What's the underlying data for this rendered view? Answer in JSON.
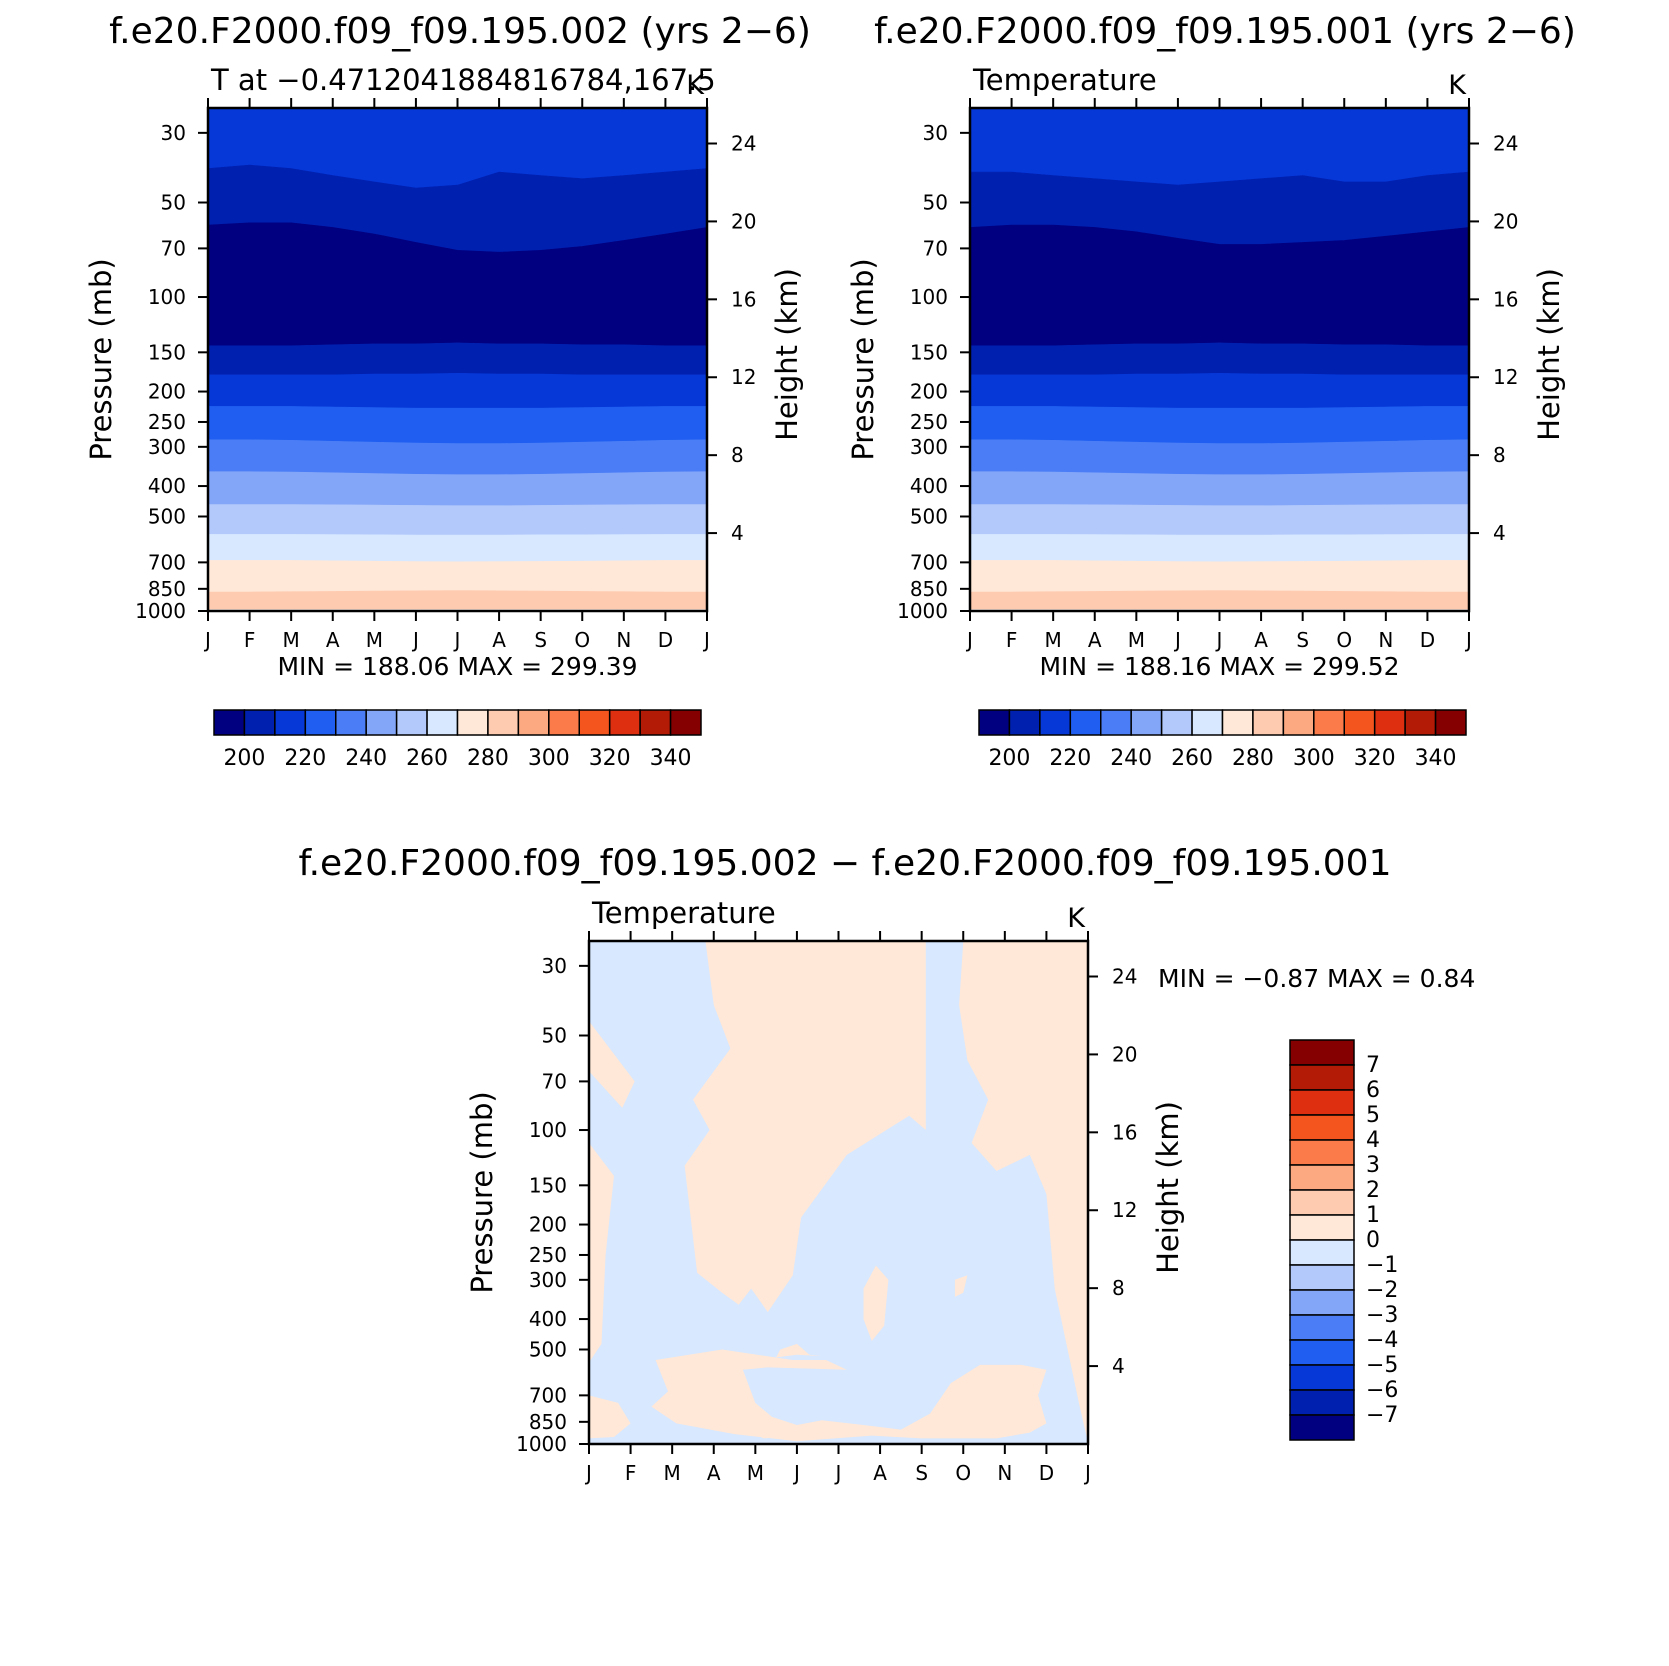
{
  "figure": {
    "panel_titles": [
      "f.e20.F2000.f09_f09.195.002 (yrs 2−6)",
      "f.e20.F2000.f09_f09.195.001 (yrs 2−6)"
    ],
    "diff_title": "f.e20.F2000.f09_f09.195.002 − f.e20.F2000.f09_f09.195.001"
  },
  "chart_data": [
    {
      "type": "heatmap",
      "title": "f.e20.F2000.f09_f09.195.002 (yrs 2−6)",
      "subtitle_left": "T at −0.4712041884816784,167.5",
      "subtitle_right": "K",
      "ylabel": "Pressure (mb)",
      "ylabel_right": "Height (km)",
      "months": [
        "J",
        "F",
        "M",
        "A",
        "M",
        "J",
        "J",
        "A",
        "S",
        "O",
        "N",
        "D",
        "J"
      ],
      "pressure_ticks": [
        30,
        50,
        70,
        100,
        150,
        200,
        250,
        300,
        400,
        500,
        700,
        850,
        1000
      ],
      "height_ticks": [
        4,
        8,
        12,
        16,
        20,
        24
      ],
      "yaxis": "log-pressure",
      "ylim_mb": [
        25,
        1000
      ],
      "min_label": "MIN = 188.06  MAX = 299.39",
      "contour_interval": 10,
      "boundaries_mb": {
        "200_210": [
          39,
          38,
          39,
          41,
          43,
          45,
          44,
          40,
          41,
          42,
          41,
          40,
          39
        ],
        "190_200": [
          59,
          58,
          58,
          60,
          63,
          67,
          71,
          72,
          71,
          69,
          66,
          63,
          60
        ],
        "200_210_low": [
          143,
          143,
          143,
          142,
          141,
          141,
          140,
          141,
          141,
          142,
          142,
          143,
          143
        ],
        "210_220": [
          177,
          177,
          177,
          177,
          176,
          176,
          175,
          176,
          176,
          177,
          177,
          177,
          177
        ],
        "220_230": [
          223,
          223,
          223,
          224,
          225,
          226,
          226,
          226,
          226,
          225,
          224,
          223,
          223
        ],
        "230_240": [
          285,
          285,
          286,
          288,
          290,
          292,
          293,
          293,
          292,
          290,
          288,
          286,
          285
        ],
        "240_250": [
          360,
          360,
          361,
          363,
          365,
          367,
          368,
          368,
          367,
          365,
          363,
          361,
          360
        ],
        "250_260": [
          458,
          458,
          458,
          459,
          460,
          461,
          462,
          462,
          461,
          460,
          459,
          458,
          458
        ],
        "260_270": [
          570,
          570,
          570,
          571,
          572,
          573,
          573,
          573,
          572,
          572,
          571,
          570,
          570
        ],
        "270_280": [
          690,
          690,
          690,
          692,
          694,
          696,
          697,
          696,
          695,
          694,
          692,
          690,
          690
        ],
        "280_290": [
          870,
          870,
          868,
          866,
          864,
          862,
          861,
          862,
          864,
          866,
          868,
          870,
          870
        ],
        "290_300": [
          995,
          995,
          995,
          995,
          995,
          995,
          995,
          995,
          995,
          995,
          995,
          995,
          995
        ]
      }
    },
    {
      "type": "heatmap",
      "title": "f.e20.F2000.f09_f09.195.001 (yrs 2−6)",
      "subtitle_left": "Temperature",
      "subtitle_right": "K",
      "ylabel": "Pressure (mb)",
      "ylabel_right": "Height (km)",
      "months": [
        "J",
        "F",
        "M",
        "A",
        "M",
        "J",
        "J",
        "A",
        "S",
        "O",
        "N",
        "D",
        "J"
      ],
      "pressure_ticks": [
        30,
        50,
        70,
        100,
        150,
        200,
        250,
        300,
        400,
        500,
        700,
        850,
        1000
      ],
      "height_ticks": [
        4,
        8,
        12,
        16,
        20,
        24
      ],
      "yaxis": "log-pressure",
      "ylim_mb": [
        25,
        1000
      ],
      "min_label": "MIN = 188.16  MAX = 299.52",
      "contour_interval": 10,
      "boundaries_mb": {
        "200_210": [
          40,
          40,
          41,
          42,
          43,
          44,
          43,
          42,
          41,
          43,
          43,
          41,
          40
        ],
        "190_200": [
          60,
          59,
          59,
          60,
          62,
          65,
          68,
          68,
          67,
          66,
          64,
          62,
          60
        ],
        "200_210_low": [
          143,
          143,
          143,
          142,
          141,
          141,
          140,
          141,
          141,
          142,
          142,
          143,
          143
        ],
        "210_220": [
          177,
          177,
          177,
          177,
          176,
          176,
          175,
          176,
          176,
          177,
          177,
          177,
          177
        ],
        "220_230": [
          223,
          223,
          223,
          224,
          225,
          226,
          226,
          226,
          226,
          225,
          224,
          223,
          223
        ],
        "230_240": [
          285,
          285,
          286,
          288,
          290,
          292,
          293,
          293,
          292,
          290,
          288,
          286,
          285
        ],
        "240_250": [
          360,
          360,
          361,
          363,
          365,
          367,
          368,
          368,
          367,
          365,
          363,
          361,
          360
        ],
        "250_260": [
          458,
          458,
          458,
          459,
          460,
          461,
          462,
          462,
          461,
          460,
          459,
          458,
          458
        ],
        "260_270": [
          570,
          570,
          570,
          571,
          572,
          573,
          573,
          573,
          572,
          572,
          571,
          570,
          570
        ],
        "270_280": [
          690,
          690,
          690,
          692,
          694,
          696,
          697,
          696,
          695,
          694,
          692,
          690,
          690
        ],
        "280_290": [
          870,
          870,
          868,
          866,
          864,
          862,
          861,
          862,
          864,
          866,
          868,
          870,
          870
        ],
        "290_300": [
          995,
          995,
          995,
          995,
          995,
          995,
          995,
          995,
          995,
          995,
          995,
          995,
          995
        ]
      }
    },
    {
      "type": "heatmap",
      "title": "f.e20.F2000.f09_f09.195.002 − f.e20.F2000.f09_f09.195.001",
      "subtitle_left": "Temperature",
      "subtitle_right": "K",
      "ylabel": "Pressure (mb)",
      "ylabel_right": "Height (km)",
      "months": [
        "J",
        "F",
        "M",
        "A",
        "M",
        "J",
        "J",
        "A",
        "S",
        "O",
        "N",
        "D",
        "J"
      ],
      "pressure_ticks": [
        30,
        50,
        70,
        100,
        150,
        200,
        250,
        300,
        400,
        500,
        700,
        850,
        1000
      ],
      "height_ticks": [
        4,
        8,
        12,
        16,
        20,
        24
      ],
      "yaxis": "log-pressure",
      "ylim_mb": [
        25,
        1000
      ],
      "min_label": "MIN =  −0.87 MAX =    0.84",
      "contour_interval": 1,
      "background_range": "-1 to 0",
      "positive_regions_month_mb": [
        [
          [
            2.8,
            25
          ],
          [
            8.1,
            25
          ],
          [
            8.1,
            100
          ],
          [
            7.7,
            90
          ],
          [
            6.2,
            120
          ],
          [
            5.1,
            190
          ],
          [
            4.9,
            290
          ],
          [
            4.3,
            380
          ],
          [
            3.9,
            320
          ],
          [
            3.6,
            360
          ],
          [
            3.2,
            330
          ],
          [
            2.6,
            285
          ],
          [
            2.5,
            220
          ],
          [
            2.3,
            130
          ],
          [
            2.9,
            100
          ],
          [
            2.5,
            80
          ],
          [
            3.4,
            55
          ],
          [
            3.0,
            40
          ]
        ],
        [
          [
            8.0,
            25
          ],
          [
            9.0,
            25
          ],
          [
            8.9,
            40
          ],
          [
            9.1,
            60
          ],
          [
            9.6,
            80
          ],
          [
            9.2,
            110
          ],
          [
            9.8,
            135
          ],
          [
            10.6,
            120
          ],
          [
            11.0,
            160
          ],
          [
            11.2,
            320
          ],
          [
            11.8,
            760
          ],
          [
            12.0,
            990
          ],
          [
            12.0,
            25
          ]
        ],
        [
          [
            8.0,
            25
          ],
          [
            12.0,
            25
          ],
          [
            12.0,
            45
          ],
          [
            11.1,
            25
          ]
        ],
        [
          [
            0,
            45
          ],
          [
            1.1,
            70
          ],
          [
            0.8,
            85
          ],
          [
            0,
            65
          ]
        ],
        [
          [
            0,
            110
          ],
          [
            0.6,
            140
          ],
          [
            0.4,
            250
          ],
          [
            0.3,
            480
          ],
          [
            0,
            550
          ]
        ],
        [
          [
            1.6,
            540
          ],
          [
            3.2,
            500
          ],
          [
            4.9,
            540
          ],
          [
            5.7,
            540
          ],
          [
            6.2,
            580
          ],
          [
            4.3,
            570
          ],
          [
            3.7,
            580
          ],
          [
            4.0,
            740
          ],
          [
            4.4,
            820
          ],
          [
            5.0,
            870
          ],
          [
            5.6,
            840
          ],
          [
            6.6,
            870
          ],
          [
            7.5,
            900
          ],
          [
            8.2,
            800
          ],
          [
            8.7,
            640
          ],
          [
            9.4,
            560
          ],
          [
            10.4,
            560
          ],
          [
            11.0,
            580
          ],
          [
            10.8,
            700
          ],
          [
            11.0,
            860
          ],
          [
            10.6,
            920
          ],
          [
            9.8,
            960
          ],
          [
            8.0,
            960
          ],
          [
            6.8,
            940
          ],
          [
            5.0,
            980
          ],
          [
            3.5,
            930
          ],
          [
            2.1,
            860
          ],
          [
            1.5,
            760
          ],
          [
            1.9,
            680
          ]
        ],
        [
          [
            0,
            700
          ],
          [
            0.7,
            740
          ],
          [
            1.0,
            860
          ],
          [
            0.6,
            950
          ],
          [
            0,
            960
          ]
        ],
        [
          [
            6.6,
            320
          ],
          [
            6.9,
            270
          ],
          [
            7.2,
            300
          ],
          [
            7.1,
            420
          ],
          [
            6.8,
            470
          ],
          [
            6.6,
            400
          ]
        ],
        [
          [
            8.8,
            300
          ],
          [
            9.1,
            290
          ],
          [
            9.0,
            330
          ],
          [
            8.8,
            340
          ]
        ],
        [
          [
            4.6,
            500
          ],
          [
            5.0,
            480
          ],
          [
            5.3,
            520
          ],
          [
            5.6,
            525
          ],
          [
            5.0,
            520
          ],
          [
            4.5,
            530
          ]
        ],
        [
          [
            5.6,
            900
          ],
          [
            6.0,
            885
          ],
          [
            6.2,
            910
          ],
          [
            5.7,
            915
          ]
        ],
        [
          [
            4.0,
            930
          ],
          [
            4.8,
            950
          ],
          [
            4.2,
            960
          ]
        ]
      ]
    }
  ],
  "colorbars": [
    {
      "type": "horizontal",
      "labels": [
        "200",
        "220",
        "240",
        "260",
        "280",
        "300",
        "320",
        "340"
      ],
      "colors": [
        "#000080",
        "#0020b0",
        "#0638d8",
        "#1f5ef0",
        "#4b7ef6",
        "#84a6f8",
        "#b3c9fb",
        "#d7e8ff",
        "#ffe8d8",
        "#ffcbb0",
        "#fca880",
        "#fc7b4a",
        "#f4541e",
        "#de3010",
        "#b41b06",
        "#850000"
      ]
    },
    {
      "type": "horizontal",
      "labels": [
        "200",
        "220",
        "240",
        "260",
        "280",
        "300",
        "320",
        "340"
      ],
      "colors": [
        "#000080",
        "#0020b0",
        "#0638d8",
        "#1f5ef0",
        "#4b7ef6",
        "#84a6f8",
        "#b3c9fb",
        "#d7e8ff",
        "#ffe8d8",
        "#ffcbb0",
        "#fca880",
        "#fc7b4a",
        "#f4541e",
        "#de3010",
        "#b41b06",
        "#850000"
      ]
    },
    {
      "type": "vertical",
      "labels": [
        "7",
        "6",
        "5",
        "4",
        "3",
        "2",
        "1",
        "0",
        "−1",
        "−2",
        "−3",
        "−4",
        "−5",
        "−6",
        "−7"
      ],
      "colors": [
        "#850000",
        "#b41b06",
        "#de3010",
        "#f4541e",
        "#fc7b4a",
        "#fca880",
        "#ffcbb0",
        "#ffe8d8",
        "#d7e8ff",
        "#b3c9fb",
        "#84a6f8",
        "#4b7ef6",
        "#1f5ef0",
        "#0638d8",
        "#0020b0",
        "#000080"
      ]
    }
  ],
  "temperature_band_colors": {
    "150_190": "#000080",
    "190_200": "#000080",
    "200_210": "#0020b0",
    "210_220": "#0638d8",
    "220_230": "#1f5ef0",
    "230_240": "#4b7ef6",
    "240_250": "#84a6f8",
    "250_260": "#b3c9fb",
    "260_270": "#d7e8ff",
    "270_280": "#ffe8d8",
    "280_290": "#ffcbb0",
    "290_300": "#fca880",
    "300_310": "#fc7b4a"
  },
  "diff_colors": {
    "negative_0_1": "#d7e8ff",
    "positive_0_1": "#ffe8d8"
  }
}
